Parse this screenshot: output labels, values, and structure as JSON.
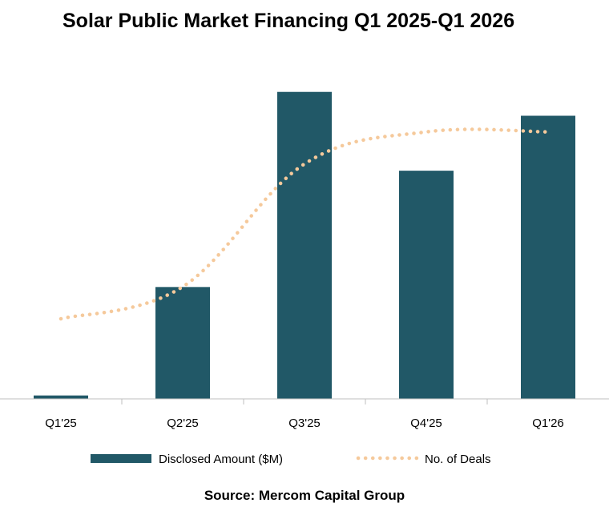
{
  "chart_data": {
    "type": "bar",
    "title": "Solar Public Market Financing Q1 2025-Q1 2026",
    "categories": [
      "Q1'25",
      "Q2'25",
      "Q3'25",
      "Q4'25",
      "Q1'26"
    ],
    "series": [
      {
        "name": "Disclosed Amount ($M)",
        "type": "bar",
        "values": [
          23,
          755,
          2072,
          1540,
          1911
        ],
        "color": "#215867"
      },
      {
        "name": "No. of Deals",
        "type": "line",
        "style": "dotted",
        "values": [
          3,
          4.2,
          8.8,
          10,
          10
        ],
        "color": "#F5C99B"
      }
    ],
    "ylim_bar": [
      0,
      2130
    ],
    "ylim_line": [
      0,
      11.4
    ],
    "legend": "bottom",
    "grid": false,
    "source": "Source: Mercom Capital Group"
  }
}
